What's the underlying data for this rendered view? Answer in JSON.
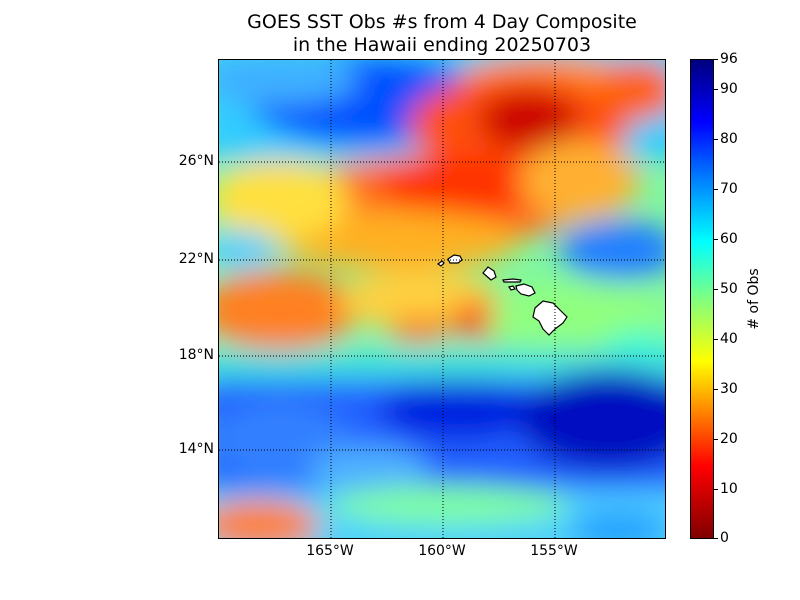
{
  "title": {
    "line1": "GOES SST Obs #s from 4 Day Composite",
    "line2": "in the Hawaii ending 20250703"
  },
  "map": {
    "lat_labels": [
      "26°N",
      "22°N",
      "18°N",
      "14°N"
    ],
    "lon_labels": [
      "165°W",
      "160°W",
      "155°W"
    ],
    "grid_style": "dotted black",
    "land_color": "#ffffff"
  },
  "colorbar": {
    "label": "# of Obs",
    "ticks": [
      "96",
      "90",
      "80",
      "70",
      "60",
      "50",
      "40",
      "30",
      "20",
      "10",
      "0"
    ],
    "min": 0,
    "max": 96,
    "colormap": "jet"
  }
}
